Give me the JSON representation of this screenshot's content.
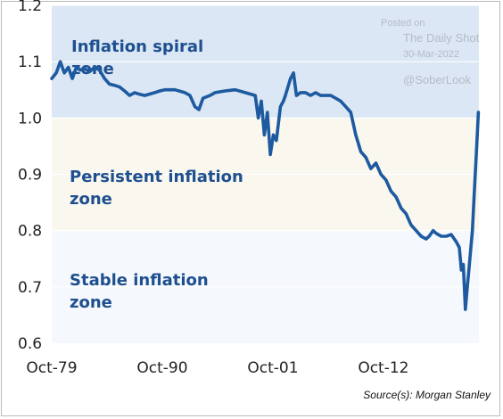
{
  "watermark": {
    "posted_on": "Posted on",
    "site": "The Daily Shot",
    "date": "30-Mar-2022",
    "handle": "@SoberLook"
  },
  "source": "Source(s): Morgan Stanley",
  "chart_data": {
    "type": "line",
    "title": "",
    "xlabel": "",
    "ylabel": "",
    "ylim": [
      0.6,
      1.2
    ],
    "yticks": [
      "1.2",
      "1.1",
      "1.0",
      "0.9",
      "0.8",
      "0.7",
      "0.6"
    ],
    "xticks": [
      "Oct-79",
      "Oct-90",
      "Oct-01",
      "Oct-12"
    ],
    "xlim": [
      1979.75,
      2022.25
    ],
    "grid": true,
    "zones": [
      {
        "label_line1": "Inflation spiral",
        "label_line2": "zone",
        "from": 1.0,
        "to": 1.2,
        "color": "#dbe7f4"
      },
      {
        "label_line1": "Persistent inflation",
        "label_line2": "zone",
        "from": 0.8,
        "to": 1.0,
        "color": "#faf7ef"
      },
      {
        "label_line1": "Stable inflation",
        "label_line2": "zone",
        "from": 0.6,
        "to": 0.8,
        "color": "#f5f8fc"
      }
    ],
    "line_color": "#1e5aa0",
    "series": [
      {
        "name": "",
        "points": [
          [
            1979.75,
            1.07
          ],
          [
            1980.2,
            1.08
          ],
          [
            1980.6,
            1.1
          ],
          [
            1981.0,
            1.08
          ],
          [
            1981.4,
            1.09
          ],
          [
            1981.8,
            1.07
          ],
          [
            1982.2,
            1.09
          ],
          [
            1982.6,
            1.085
          ],
          [
            1983.0,
            1.088
          ],
          [
            1983.5,
            1.082
          ],
          [
            1984.0,
            1.09
          ],
          [
            1984.5,
            1.085
          ],
          [
            1985.0,
            1.07
          ],
          [
            1985.5,
            1.06
          ],
          [
            1986.0,
            1.058
          ],
          [
            1986.5,
            1.055
          ],
          [
            1987.0,
            1.048
          ],
          [
            1987.5,
            1.04
          ],
          [
            1988.0,
            1.045
          ],
          [
            1988.5,
            1.042
          ],
          [
            1989.0,
            1.04
          ],
          [
            1990.0,
            1.045
          ],
          [
            1990.5,
            1.048
          ],
          [
            1991.0,
            1.05
          ],
          [
            1992.0,
            1.05
          ],
          [
            1993.0,
            1.045
          ],
          [
            1993.5,
            1.04
          ],
          [
            1994.0,
            1.02
          ],
          [
            1994.4,
            1.015
          ],
          [
            1994.8,
            1.035
          ],
          [
            1995.5,
            1.04
          ],
          [
            1996.0,
            1.045
          ],
          [
            1997.0,
            1.048
          ],
          [
            1998.0,
            1.05
          ],
          [
            1999.0,
            1.045
          ],
          [
            2000.0,
            1.04
          ],
          [
            2000.3,
            1.0
          ],
          [
            2000.6,
            1.03
          ],
          [
            2000.9,
            0.97
          ],
          [
            2001.2,
            1.01
          ],
          [
            2001.5,
            0.935
          ],
          [
            2001.8,
            0.97
          ],
          [
            2002.1,
            0.96
          ],
          [
            2002.5,
            1.02
          ],
          [
            2002.8,
            1.03
          ],
          [
            2003.0,
            1.04
          ],
          [
            2003.5,
            1.07
          ],
          [
            2003.8,
            1.08
          ],
          [
            2004.1,
            1.04
          ],
          [
            2004.5,
            1.045
          ],
          [
            2005.0,
            1.045
          ],
          [
            2005.5,
            1.04
          ],
          [
            2006.0,
            1.045
          ],
          [
            2006.5,
            1.04
          ],
          [
            2007.0,
            1.04
          ],
          [
            2007.5,
            1.04
          ],
          [
            2008.0,
            1.035
          ],
          [
            2008.5,
            1.03
          ],
          [
            2009.0,
            1.02
          ],
          [
            2009.5,
            1.01
          ],
          [
            2010.0,
            0.97
          ],
          [
            2010.5,
            0.94
          ],
          [
            2011.0,
            0.93
          ],
          [
            2011.5,
            0.91
          ],
          [
            2012.0,
            0.92
          ],
          [
            2012.5,
            0.9
          ],
          [
            2013.0,
            0.89
          ],
          [
            2013.5,
            0.87
          ],
          [
            2014.0,
            0.86
          ],
          [
            2014.5,
            0.84
          ],
          [
            2015.0,
            0.83
          ],
          [
            2015.5,
            0.81
          ],
          [
            2016.0,
            0.8
          ],
          [
            2016.5,
            0.79
          ],
          [
            2017.0,
            0.785
          ],
          [
            2017.3,
            0.79
          ],
          [
            2017.7,
            0.8
          ],
          [
            2018.0,
            0.795
          ],
          [
            2018.5,
            0.79
          ],
          [
            2019.0,
            0.79
          ],
          [
            2019.5,
            0.793
          ],
          [
            2020.0,
            0.78
          ],
          [
            2020.3,
            0.77
          ],
          [
            2020.5,
            0.73
          ],
          [
            2020.7,
            0.74
          ],
          [
            2020.9,
            0.66
          ],
          [
            2021.1,
            0.7
          ],
          [
            2021.3,
            0.74
          ],
          [
            2021.6,
            0.8
          ],
          [
            2021.8,
            0.87
          ],
          [
            2022.0,
            0.94
          ],
          [
            2022.2,
            1.01
          ]
        ]
      }
    ]
  }
}
